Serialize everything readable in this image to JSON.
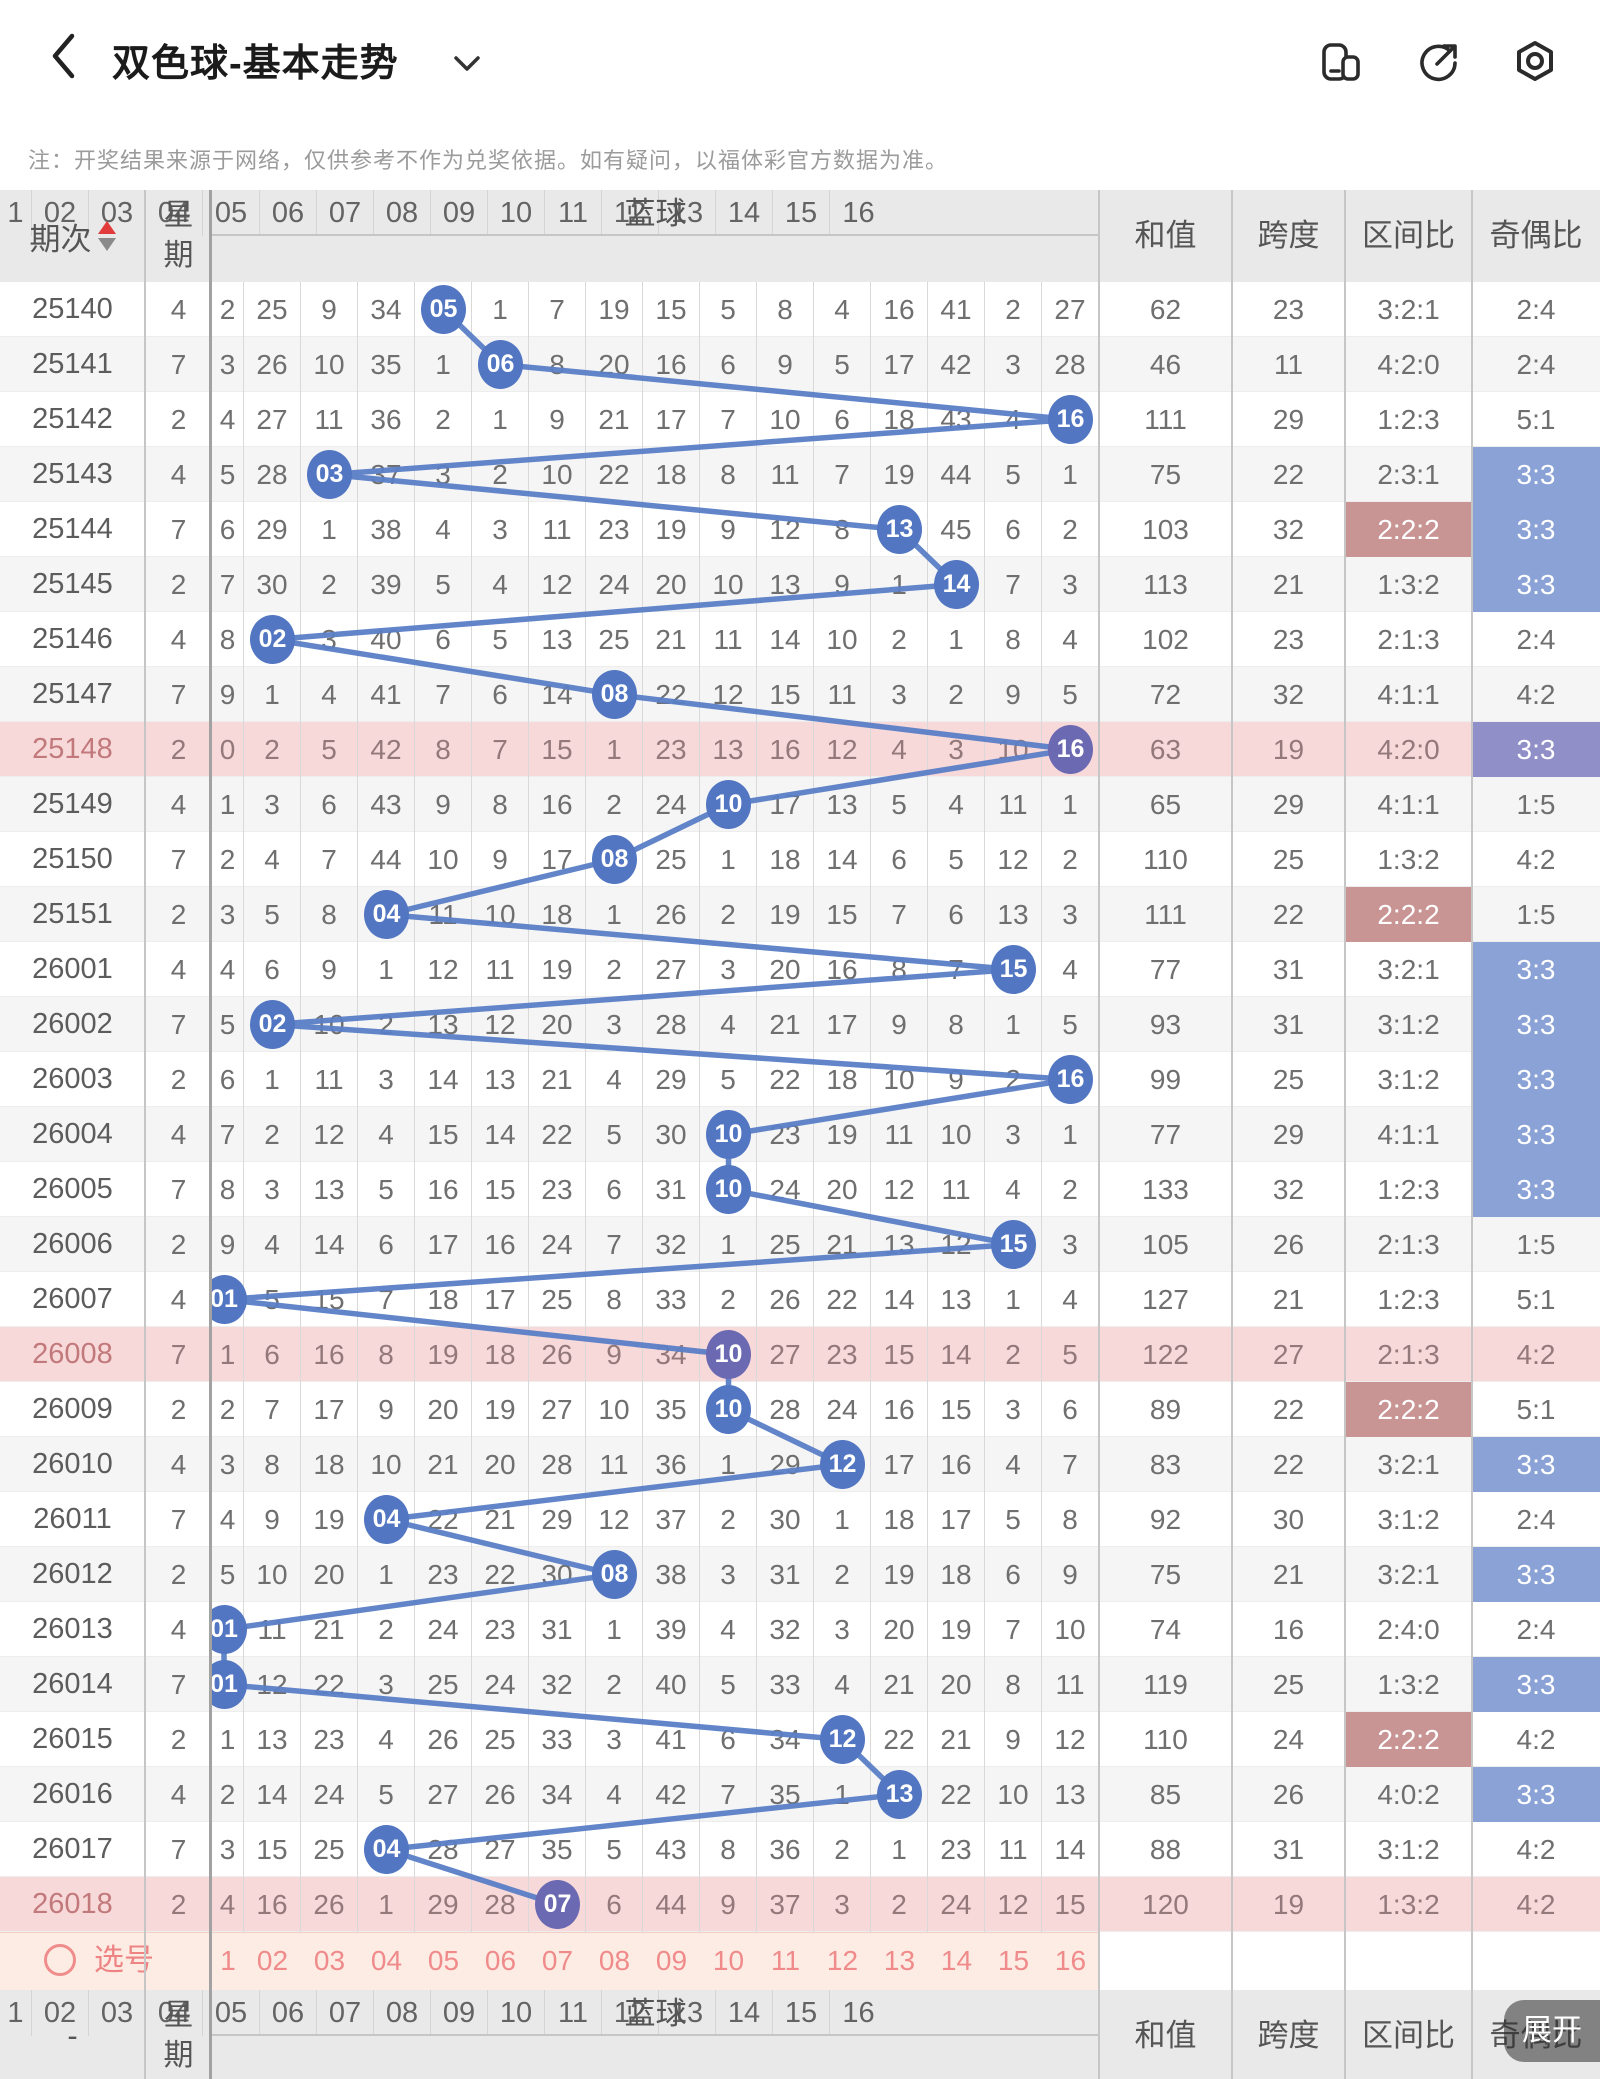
{
  "header": {
    "title": "双色球-基本走势",
    "icons": [
      "multi-window",
      "share",
      "settings"
    ]
  },
  "note": "注：开奖结果来源于网络，仅供参考不作为兑奖依据。如有疑问，以福体彩官方数据为准。",
  "table": {
    "col_headers": {
      "period": "期次",
      "week": "星期",
      "blue": "蓝球",
      "sum": "和值",
      "span": "跨度",
      "zone_ratio": "区间比",
      "odd_even": "奇偶比"
    },
    "ball_headers": [
      "1",
      "02",
      "03",
      "04",
      "05",
      "06",
      "07",
      "08",
      "09",
      "10",
      "11",
      "12",
      "13",
      "14",
      "15",
      "16"
    ],
    "rows": [
      {
        "period": "25140",
        "week": "4",
        "cells": [
          "2",
          "25",
          "9",
          "34",
          "05",
          "1",
          "7",
          "19",
          "15",
          "5",
          "8",
          "4",
          "16",
          "41",
          "2",
          "27"
        ],
        "drawn": 5,
        "sum": "62",
        "span": "23",
        "zone": "3:2:1",
        "oe": "2:4",
        "pink": false,
        "zone_hl": "",
        "oe_hl": ""
      },
      {
        "period": "25141",
        "week": "7",
        "cells": [
          "3",
          "26",
          "10",
          "35",
          "1",
          "06",
          "8",
          "20",
          "16",
          "6",
          "9",
          "5",
          "17",
          "42",
          "3",
          "28"
        ],
        "drawn": 6,
        "sum": "46",
        "span": "11",
        "zone": "4:2:0",
        "oe": "2:4",
        "pink": false,
        "zone_hl": "",
        "oe_hl": ""
      },
      {
        "period": "25142",
        "week": "2",
        "cells": [
          "4",
          "27",
          "11",
          "36",
          "2",
          "1",
          "9",
          "21",
          "17",
          "7",
          "10",
          "6",
          "18",
          "43",
          "4",
          "16"
        ],
        "drawn": 16,
        "sum": "111",
        "span": "29",
        "zone": "1:2:3",
        "oe": "5:1",
        "pink": false,
        "zone_hl": "",
        "oe_hl": ""
      },
      {
        "period": "25143",
        "week": "4",
        "cells": [
          "5",
          "28",
          "03",
          "37",
          "3",
          "2",
          "10",
          "22",
          "18",
          "8",
          "11",
          "7",
          "19",
          "44",
          "5",
          "1"
        ],
        "drawn": 3,
        "sum": "75",
        "span": "22",
        "zone": "2:3:1",
        "oe": "3:3",
        "pink": false,
        "zone_hl": "",
        "oe_hl": "blue"
      },
      {
        "period": "25144",
        "week": "7",
        "cells": [
          "6",
          "29",
          "1",
          "38",
          "4",
          "3",
          "11",
          "23",
          "19",
          "9",
          "12",
          "8",
          "13",
          "45",
          "6",
          "2"
        ],
        "drawn": 13,
        "sum": "103",
        "span": "32",
        "zone": "2:2:2",
        "oe": "3:3",
        "pink": false,
        "zone_hl": "red",
        "oe_hl": "blue"
      },
      {
        "period": "25145",
        "week": "2",
        "cells": [
          "7",
          "30",
          "2",
          "39",
          "5",
          "4",
          "12",
          "24",
          "20",
          "10",
          "13",
          "9",
          "1",
          "14",
          "7",
          "3"
        ],
        "drawn": 14,
        "sum": "113",
        "span": "21",
        "zone": "1:3:2",
        "oe": "3:3",
        "pink": false,
        "zone_hl": "",
        "oe_hl": "blue"
      },
      {
        "period": "25146",
        "week": "4",
        "cells": [
          "8",
          "02",
          "3",
          "40",
          "6",
          "5",
          "13",
          "25",
          "21",
          "11",
          "14",
          "10",
          "2",
          "1",
          "8",
          "4"
        ],
        "drawn": 2,
        "sum": "102",
        "span": "23",
        "zone": "2:1:3",
        "oe": "2:4",
        "pink": false,
        "zone_hl": "",
        "oe_hl": ""
      },
      {
        "period": "25147",
        "week": "7",
        "cells": [
          "9",
          "1",
          "4",
          "41",
          "7",
          "6",
          "14",
          "08",
          "22",
          "12",
          "15",
          "11",
          "3",
          "2",
          "9",
          "5"
        ],
        "drawn": 8,
        "sum": "72",
        "span": "32",
        "zone": "4:1:1",
        "oe": "4:2",
        "pink": false,
        "zone_hl": "",
        "oe_hl": ""
      },
      {
        "period": "25148",
        "week": "2",
        "cells": [
          "0",
          "2",
          "5",
          "42",
          "8",
          "7",
          "15",
          "1",
          "23",
          "13",
          "16",
          "12",
          "4",
          "3",
          "10",
          "16"
        ],
        "drawn": 16,
        "sum": "63",
        "span": "19",
        "zone": "4:2:0",
        "oe": "3:3",
        "pink": true,
        "zone_hl": "",
        "oe_hl": "purple"
      },
      {
        "period": "25149",
        "week": "4",
        "cells": [
          "1",
          "3",
          "6",
          "43",
          "9",
          "8",
          "16",
          "2",
          "24",
          "10",
          "17",
          "13",
          "5",
          "4",
          "11",
          "1"
        ],
        "drawn": 10,
        "sum": "65",
        "span": "29",
        "zone": "4:1:1",
        "oe": "1:5",
        "pink": false,
        "zone_hl": "",
        "oe_hl": ""
      },
      {
        "period": "25150",
        "week": "7",
        "cells": [
          "2",
          "4",
          "7",
          "44",
          "10",
          "9",
          "17",
          "08",
          "25",
          "1",
          "18",
          "14",
          "6",
          "5",
          "12",
          "2"
        ],
        "drawn": 8,
        "sum": "110",
        "span": "25",
        "zone": "1:3:2",
        "oe": "4:2",
        "pink": false,
        "zone_hl": "",
        "oe_hl": ""
      },
      {
        "period": "25151",
        "week": "2",
        "cells": [
          "3",
          "5",
          "8",
          "04",
          "11",
          "10",
          "18",
          "1",
          "26",
          "2",
          "19",
          "15",
          "7",
          "6",
          "13",
          "3"
        ],
        "drawn": 4,
        "sum": "111",
        "span": "22",
        "zone": "2:2:2",
        "oe": "1:5",
        "pink": false,
        "zone_hl": "red",
        "oe_hl": ""
      },
      {
        "period": "26001",
        "week": "4",
        "cells": [
          "4",
          "6",
          "9",
          "1",
          "12",
          "11",
          "19",
          "2",
          "27",
          "3",
          "20",
          "16",
          "8",
          "7",
          "15",
          "4"
        ],
        "drawn": 15,
        "sum": "77",
        "span": "31",
        "zone": "3:2:1",
        "oe": "3:3",
        "pink": false,
        "zone_hl": "",
        "oe_hl": "blue"
      },
      {
        "period": "26002",
        "week": "7",
        "cells": [
          "5",
          "02",
          "10",
          "2",
          "13",
          "12",
          "20",
          "3",
          "28",
          "4",
          "21",
          "17",
          "9",
          "8",
          "1",
          "5"
        ],
        "drawn": 2,
        "sum": "93",
        "span": "31",
        "zone": "3:1:2",
        "oe": "3:3",
        "pink": false,
        "zone_hl": "",
        "oe_hl": "blue"
      },
      {
        "period": "26003",
        "week": "2",
        "cells": [
          "6",
          "1",
          "11",
          "3",
          "14",
          "13",
          "21",
          "4",
          "29",
          "5",
          "22",
          "18",
          "10",
          "9",
          "2",
          "16"
        ],
        "drawn": 16,
        "sum": "99",
        "span": "25",
        "zone": "3:1:2",
        "oe": "3:3",
        "pink": false,
        "zone_hl": "",
        "oe_hl": "blue"
      },
      {
        "period": "26004",
        "week": "4",
        "cells": [
          "7",
          "2",
          "12",
          "4",
          "15",
          "14",
          "22",
          "5",
          "30",
          "10",
          "23",
          "19",
          "11",
          "10",
          "3",
          "1"
        ],
        "drawn": 10,
        "sum": "77",
        "span": "29",
        "zone": "4:1:1",
        "oe": "3:3",
        "pink": false,
        "zone_hl": "",
        "oe_hl": "blue"
      },
      {
        "period": "26005",
        "week": "7",
        "cells": [
          "8",
          "3",
          "13",
          "5",
          "16",
          "15",
          "23",
          "6",
          "31",
          "10",
          "24",
          "20",
          "12",
          "11",
          "4",
          "2"
        ],
        "drawn": 10,
        "sum": "133",
        "span": "32",
        "zone": "1:2:3",
        "oe": "3:3",
        "pink": false,
        "zone_hl": "",
        "oe_hl": "blue"
      },
      {
        "period": "26006",
        "week": "2",
        "cells": [
          "9",
          "4",
          "14",
          "6",
          "17",
          "16",
          "24",
          "7",
          "32",
          "1",
          "25",
          "21",
          "13",
          "12",
          "15",
          "3"
        ],
        "drawn": 15,
        "sum": "105",
        "span": "26",
        "zone": "2:1:3",
        "oe": "1:5",
        "pink": false,
        "zone_hl": "",
        "oe_hl": ""
      },
      {
        "period": "26007",
        "week": "4",
        "cells": [
          "01",
          "5",
          "15",
          "7",
          "18",
          "17",
          "25",
          "8",
          "33",
          "2",
          "26",
          "22",
          "14",
          "13",
          "1",
          "4"
        ],
        "drawn": 1,
        "sum": "127",
        "span": "21",
        "zone": "1:2:3",
        "oe": "5:1",
        "pink": false,
        "zone_hl": "",
        "oe_hl": ""
      },
      {
        "period": "26008",
        "week": "7",
        "cells": [
          "1",
          "6",
          "16",
          "8",
          "19",
          "18",
          "26",
          "9",
          "34",
          "10",
          "27",
          "23",
          "15",
          "14",
          "2",
          "5"
        ],
        "drawn": 10,
        "sum": "122",
        "span": "27",
        "zone": "2:1:3",
        "oe": "4:2",
        "pink": true,
        "zone_hl": "",
        "oe_hl": ""
      },
      {
        "period": "26009",
        "week": "2",
        "cells": [
          "2",
          "7",
          "17",
          "9",
          "20",
          "19",
          "27",
          "10",
          "35",
          "10",
          "28",
          "24",
          "16",
          "15",
          "3",
          "6"
        ],
        "drawn": 10,
        "sum": "89",
        "span": "22",
        "zone": "2:2:2",
        "oe": "5:1",
        "pink": false,
        "zone_hl": "red",
        "oe_hl": ""
      },
      {
        "period": "26010",
        "week": "4",
        "cells": [
          "3",
          "8",
          "18",
          "10",
          "21",
          "20",
          "28",
          "11",
          "36",
          "1",
          "29",
          "12",
          "17",
          "16",
          "4",
          "7"
        ],
        "drawn": 12,
        "sum": "83",
        "span": "22",
        "zone": "3:2:1",
        "oe": "3:3",
        "pink": false,
        "zone_hl": "",
        "oe_hl": "blue"
      },
      {
        "period": "26011",
        "week": "7",
        "cells": [
          "4",
          "9",
          "19",
          "04",
          "22",
          "21",
          "29",
          "12",
          "37",
          "2",
          "30",
          "1",
          "18",
          "17",
          "5",
          "8"
        ],
        "drawn": 4,
        "sum": "92",
        "span": "30",
        "zone": "3:1:2",
        "oe": "2:4",
        "pink": false,
        "zone_hl": "",
        "oe_hl": ""
      },
      {
        "period": "26012",
        "week": "2",
        "cells": [
          "5",
          "10",
          "20",
          "1",
          "23",
          "22",
          "30",
          "08",
          "38",
          "3",
          "31",
          "2",
          "19",
          "18",
          "6",
          "9"
        ],
        "drawn": 8,
        "sum": "75",
        "span": "21",
        "zone": "3:2:1",
        "oe": "3:3",
        "pink": false,
        "zone_hl": "",
        "oe_hl": "blue"
      },
      {
        "period": "26013",
        "week": "4",
        "cells": [
          "01",
          "11",
          "21",
          "2",
          "24",
          "23",
          "31",
          "1",
          "39",
          "4",
          "32",
          "3",
          "20",
          "19",
          "7",
          "10"
        ],
        "drawn": 1,
        "sum": "74",
        "span": "16",
        "zone": "2:4:0",
        "oe": "2:4",
        "pink": false,
        "zone_hl": "",
        "oe_hl": ""
      },
      {
        "period": "26014",
        "week": "7",
        "cells": [
          "01",
          "12",
          "22",
          "3",
          "25",
          "24",
          "32",
          "2",
          "40",
          "5",
          "33",
          "4",
          "21",
          "20",
          "8",
          "11"
        ],
        "drawn": 1,
        "sum": "119",
        "span": "25",
        "zone": "1:3:2",
        "oe": "3:3",
        "pink": false,
        "zone_hl": "",
        "oe_hl": "blue"
      },
      {
        "period": "26015",
        "week": "2",
        "cells": [
          "1",
          "13",
          "23",
          "4",
          "26",
          "25",
          "33",
          "3",
          "41",
          "6",
          "34",
          "12",
          "22",
          "21",
          "9",
          "12"
        ],
        "drawn": 12,
        "sum": "110",
        "span": "24",
        "zone": "2:2:2",
        "oe": "4:2",
        "pink": false,
        "zone_hl": "red",
        "oe_hl": ""
      },
      {
        "period": "26016",
        "week": "4",
        "cells": [
          "2",
          "14",
          "24",
          "5",
          "27",
          "26",
          "34",
          "4",
          "42",
          "7",
          "35",
          "1",
          "13",
          "22",
          "10",
          "13"
        ],
        "drawn": 13,
        "sum": "85",
        "span": "26",
        "zone": "4:0:2",
        "oe": "3:3",
        "pink": false,
        "zone_hl": "",
        "oe_hl": "blue"
      },
      {
        "period": "26017",
        "week": "7",
        "cells": [
          "3",
          "15",
          "25",
          "04",
          "28",
          "27",
          "35",
          "5",
          "43",
          "8",
          "36",
          "2",
          "1",
          "23",
          "11",
          "14"
        ],
        "drawn": 4,
        "sum": "88",
        "span": "31",
        "zone": "3:1:2",
        "oe": "4:2",
        "pink": false,
        "zone_hl": "",
        "oe_hl": ""
      },
      {
        "period": "26018",
        "week": "2",
        "cells": [
          "4",
          "16",
          "26",
          "1",
          "29",
          "28",
          "07",
          "6",
          "44",
          "9",
          "37",
          "3",
          "2",
          "24",
          "12",
          "15"
        ],
        "drawn": 7,
        "sum": "120",
        "span": "19",
        "zone": "1:3:2",
        "oe": "4:2",
        "pink": true,
        "zone_hl": "",
        "oe_hl": ""
      }
    ]
  },
  "select_row": {
    "label": "选号",
    "balls": [
      "1",
      "02",
      "03",
      "04",
      "05",
      "06",
      "07",
      "08",
      "09",
      "10",
      "11",
      "12",
      "13",
      "14",
      "15",
      "16"
    ]
  },
  "footer": {
    "period_placeholder": "-"
  },
  "expand_button": "展开",
  "colors": {
    "circle_blue": "#5276c2",
    "circle_purple": "#6b69b2",
    "line_blue": "#5a7ec6",
    "hl_blue": "#8ba2d6",
    "hl_red": "#c99494",
    "hl_purple": "#918fc7",
    "pink_row": "#f8d9d9",
    "select_pink": "#fdece4",
    "salmon": "#f08b8b"
  }
}
